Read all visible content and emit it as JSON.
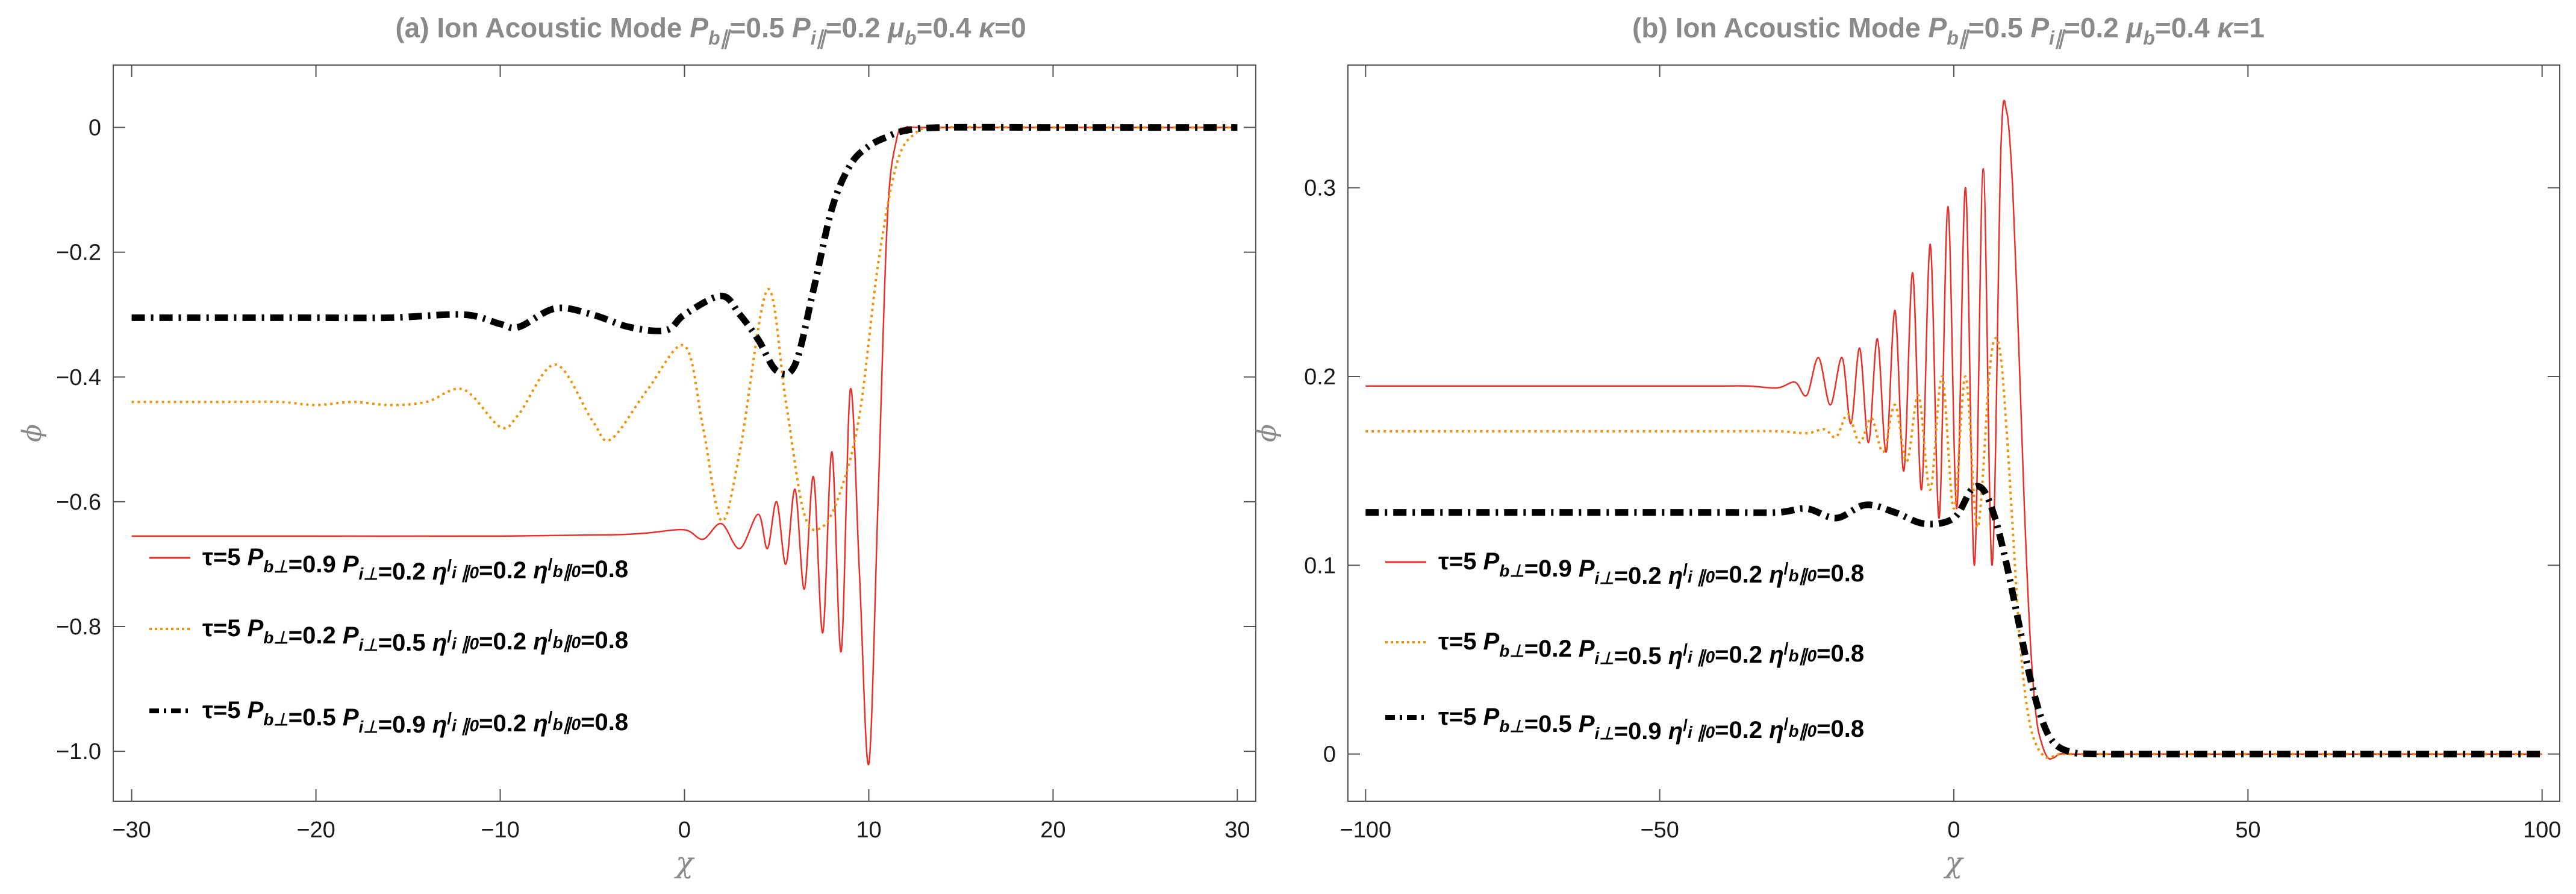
{
  "chart_data": [
    {
      "type": "line",
      "title_prefix": "(a) Ion Acoustic Mode ",
      "title_params": [
        {
          "sym": "P",
          "sub": "b∥",
          "val": "=0.5"
        },
        {
          "sym": "P",
          "sub": "i∥",
          "val": "=0.2"
        },
        {
          "sym": "μ",
          "sub": "b",
          "val": "=0.4"
        },
        {
          "sym": "κ",
          "sub": "",
          "val": "=0"
        }
      ],
      "xlabel": "χ",
      "ylabel": "ϕ",
      "xlim": [
        -31,
        31
      ],
      "ylim": [
        -1.08,
        0.1
      ],
      "xticks": [
        -30,
        -20,
        -10,
        0,
        10,
        20,
        30
      ],
      "xtick_labels": [
        "−30",
        "−20",
        "−10",
        "0",
        "10",
        "20",
        "30"
      ],
      "yticks": [
        0,
        -0.2,
        -0.4,
        -0.6,
        -0.8,
        -1.0
      ],
      "ytick_labels": [
        "0",
        "−0.2",
        "−0.4",
        "−0.6",
        "−0.8",
        "−1.0"
      ],
      "legend_position": "lower-left",
      "series": [
        {
          "name": "τ=5 P_b⊥=0.9 P_i⊥=0.2 η'_i∥0=0.2 η'_b∥0=0.8",
          "label_parts": [
            {
              "t": "τ=5 "
            },
            {
              "t": "P"
            },
            {
              "t": "b⊥",
              "sub": true
            },
            {
              "t": "=0.9 "
            },
            {
              "t": "P"
            },
            {
              "t": "i⊥",
              "sub": true
            },
            {
              "t": "=0.2 "
            },
            {
              "t": "η"
            },
            {
              "t": "/",
              "sup": true
            },
            {
              "t": "i ∥0",
              "sub": true
            },
            {
              "t": "=0.2 "
            },
            {
              "t": "η"
            },
            {
              "t": "/",
              "sup": true
            },
            {
              "t": "b∥0",
              "sub": true
            },
            {
              "t": "=0.8"
            }
          ],
          "color": "#e8302a",
          "style": "solid",
          "x": [
            -30,
            -20,
            -10,
            -4,
            -2,
            0,
            1,
            2,
            3,
            4,
            4.5,
            5,
            5.5,
            6,
            6.5,
            7,
            7.5,
            8,
            8.5,
            9,
            9.5,
            10,
            10.5,
            11,
            11.5,
            12,
            13,
            20,
            30
          ],
          "y": [
            -0.655,
            -0.655,
            -0.655,
            -0.653,
            -0.65,
            -0.645,
            -0.66,
            -0.635,
            -0.675,
            -0.62,
            -0.675,
            -0.6,
            -0.7,
            -0.58,
            -0.74,
            -0.56,
            -0.81,
            -0.52,
            -0.84,
            -0.42,
            -0.72,
            -1.02,
            -0.6,
            -0.15,
            -0.02,
            0.0,
            0.0,
            0.0,
            0.0
          ]
        },
        {
          "name": "τ=5 P_b⊥=0.2 P_i⊥=0.5 η'_i∥0=0.2 η'_b∥0=0.8",
          "label_parts": [
            {
              "t": "τ=5 "
            },
            {
              "t": "P"
            },
            {
              "t": "b⊥",
              "sub": true
            },
            {
              "t": "=0.2 "
            },
            {
              "t": "P"
            },
            {
              "t": "i⊥",
              "sub": true
            },
            {
              "t": "=0.5 "
            },
            {
              "t": "η"
            },
            {
              "t": "/",
              "sup": true
            },
            {
              "t": "i ∥0",
              "sub": true
            },
            {
              "t": "=0.2 "
            },
            {
              "t": "η"
            },
            {
              "t": "/",
              "sup": true
            },
            {
              "t": "b∥0",
              "sub": true
            },
            {
              "t": "=0.8"
            }
          ],
          "color": "#f0920a",
          "style": "dotted",
          "x": [
            -30,
            -25,
            -22,
            -20,
            -18,
            -16,
            -14,
            -12,
            -10,
            -9,
            -7,
            -5,
            -4,
            -2,
            0,
            1,
            2,
            3,
            4.5,
            5.5,
            6.5,
            7.5,
            8.5,
            9.5,
            10.5,
            11.5,
            12.5,
            14,
            20,
            30
          ],
          "y": [
            -0.44,
            -0.44,
            -0.44,
            -0.445,
            -0.44,
            -0.445,
            -0.44,
            -0.42,
            -0.48,
            -0.46,
            -0.38,
            -0.47,
            -0.5,
            -0.42,
            -0.35,
            -0.48,
            -0.63,
            -0.52,
            -0.26,
            -0.44,
            -0.62,
            -0.64,
            -0.58,
            -0.46,
            -0.22,
            -0.06,
            -0.01,
            0.0,
            0.0,
            0.0
          ]
        },
        {
          "name": "τ=5 P_b⊥=0.5 P_i⊥=0.9 η'_i∥0=0.2 η'_b∥0=0.8",
          "label_parts": [
            {
              "t": "τ=5 "
            },
            {
              "t": "P"
            },
            {
              "t": "b⊥",
              "sub": true
            },
            {
              "t": "=0.5 "
            },
            {
              "t": "P"
            },
            {
              "t": "i⊥",
              "sub": true
            },
            {
              "t": "=0.9 "
            },
            {
              "t": "η"
            },
            {
              "t": "/",
              "sup": true
            },
            {
              "t": "i ∥0",
              "sub": true
            },
            {
              "t": "=0.2 "
            },
            {
              "t": "η"
            },
            {
              "t": "/",
              "sup": true
            },
            {
              "t": "b∥0",
              "sub": true
            },
            {
              "t": "=0.8"
            }
          ],
          "color": "#000000",
          "style": "dashdot",
          "x": [
            -30,
            -25,
            -20,
            -16,
            -12,
            -10,
            -9,
            -7,
            -5,
            -3,
            -1,
            0,
            2,
            3,
            4,
            5,
            6,
            7,
            8,
            9,
            10,
            11,
            12,
            14,
            20,
            30
          ],
          "y": [
            -0.305,
            -0.305,
            -0.305,
            -0.305,
            -0.3,
            -0.315,
            -0.32,
            -0.29,
            -0.3,
            -0.32,
            -0.325,
            -0.3,
            -0.27,
            -0.3,
            -0.34,
            -0.39,
            -0.38,
            -0.26,
            -0.13,
            -0.06,
            -0.03,
            -0.015,
            -0.005,
            0.0,
            0.0,
            0.0
          ]
        }
      ]
    },
    {
      "type": "line",
      "title_prefix": "(b) Ion Acoustic Mode ",
      "title_params": [
        {
          "sym": "P",
          "sub": "b∥",
          "val": "=0.5"
        },
        {
          "sym": "P",
          "sub": "i∥",
          "val": "=0.2"
        },
        {
          "sym": "μ",
          "sub": "b",
          "val": "=0.4"
        },
        {
          "sym": "κ",
          "sub": "",
          "val": "=1"
        }
      ],
      "xlabel": "χ",
      "ylabel": "ϕ",
      "xlim": [
        -103,
        103
      ],
      "ylim": [
        -0.025,
        0.365
      ],
      "xticks": [
        -100,
        -50,
        0,
        50,
        100
      ],
      "xtick_labels": [
        "−100",
        "−50",
        "0",
        "50",
        "100"
      ],
      "yticks": [
        0,
        0.1,
        0.2,
        0.3
      ],
      "ytick_labels": [
        "0",
        "0.1",
        "0.2",
        "0.3"
      ],
      "legend_position": "lower-left",
      "series": [
        {
          "name": "τ=5 P_b⊥=0.9 P_i⊥=0.2 η'_i∥0=0.2 η'_b∥0=0.8",
          "label_parts": [
            {
              "t": "τ=5 "
            },
            {
              "t": "P"
            },
            {
              "t": "b⊥",
              "sub": true
            },
            {
              "t": "=0.9 "
            },
            {
              "t": "P"
            },
            {
              "t": "i⊥",
              "sub": true
            },
            {
              "t": "=0.2 "
            },
            {
              "t": "η"
            },
            {
              "t": "/",
              "sup": true
            },
            {
              "t": "i ∥0",
              "sub": true
            },
            {
              "t": "=0.2 "
            },
            {
              "t": "η"
            },
            {
              "t": "/",
              "sup": true
            },
            {
              "t": "b∥0",
              "sub": true
            },
            {
              "t": "=0.8"
            }
          ],
          "color": "#e8302a",
          "style": "solid",
          "x": [
            -100,
            -60,
            -40,
            -35,
            -30,
            -27,
            -25,
            -23,
            -21,
            -19,
            -17.5,
            -16,
            -14.5,
            -13,
            -11.5,
            -10,
            -8.5,
            -7,
            -5.5,
            -4,
            -2.5,
            -1,
            0.5,
            2,
            3.5,
            5,
            6.5,
            8,
            9,
            10,
            11,
            12,
            13,
            14,
            15,
            16,
            17,
            18,
            20,
            25,
            40,
            100
          ],
          "y": [
            0.195,
            0.195,
            0.195,
            0.195,
            0.194,
            0.197,
            0.19,
            0.21,
            0.185,
            0.21,
            0.175,
            0.215,
            0.165,
            0.22,
            0.16,
            0.235,
            0.15,
            0.255,
            0.14,
            0.27,
            0.125,
            0.29,
            0.13,
            0.3,
            0.1,
            0.31,
            0.1,
            0.32,
            0.34,
            0.3,
            0.22,
            0.13,
            0.06,
            0.02,
            0.005,
            -0.002,
            -0.002,
            0.0,
            0.0,
            0.0,
            0.0,
            0.0
          ]
        },
        {
          "name": "τ=5 P_b⊥=0.2 P_i⊥=0.5 η'_i∥0=0.2 η'_b∥0=0.8",
          "label_parts": [
            {
              "t": "τ=5 "
            },
            {
              "t": "P"
            },
            {
              "t": "b⊥",
              "sub": true
            },
            {
              "t": "=0.2 "
            },
            {
              "t": "P"
            },
            {
              "t": "i⊥",
              "sub": true
            },
            {
              "t": "=0.5 "
            },
            {
              "t": "η"
            },
            {
              "t": "/",
              "sup": true
            },
            {
              "t": "i ∥0",
              "sub": true
            },
            {
              "t": "=0.2 "
            },
            {
              "t": "η"
            },
            {
              "t": "/",
              "sup": true
            },
            {
              "t": "b∥0",
              "sub": true
            },
            {
              "t": "=0.8"
            }
          ],
          "color": "#f0920a",
          "style": "dotted",
          "x": [
            -100,
            -60,
            -40,
            -30,
            -25,
            -22,
            -20,
            -18,
            -16,
            -14,
            -12,
            -10,
            -8,
            -6,
            -4,
            -2,
            0,
            2,
            4,
            6,
            7,
            8,
            9,
            10,
            11,
            12,
            13,
            14,
            15,
            16,
            18,
            20,
            30,
            100
          ],
          "y": [
            0.171,
            0.171,
            0.171,
            0.171,
            0.17,
            0.172,
            0.168,
            0.18,
            0.165,
            0.178,
            0.16,
            0.185,
            0.155,
            0.19,
            0.14,
            0.2,
            0.13,
            0.2,
            0.12,
            0.2,
            0.22,
            0.21,
            0.17,
            0.12,
            0.07,
            0.035,
            0.015,
            0.005,
            0.0,
            -0.002,
            0.0,
            0.0,
            0.0,
            0.0
          ]
        },
        {
          "name": "τ=5 P_b⊥=0.5 P_i⊥=0.9 η'_i∥0=0.2 η'_b∥0=0.8",
          "label_parts": [
            {
              "t": "τ=5 "
            },
            {
              "t": "P"
            },
            {
              "t": "b⊥",
              "sub": true
            },
            {
              "t": "=0.5 "
            },
            {
              "t": "P"
            },
            {
              "t": "i⊥",
              "sub": true
            },
            {
              "t": "=0.9 "
            },
            {
              "t": "η"
            },
            {
              "t": "/",
              "sup": true
            },
            {
              "t": "i ∥0",
              "sub": true
            },
            {
              "t": "=0.2 "
            },
            {
              "t": "η"
            },
            {
              "t": "/",
              "sup": true
            },
            {
              "t": "b∥0",
              "sub": true
            },
            {
              "t": "=0.8"
            }
          ],
          "color": "#000000",
          "style": "dashdot",
          "x": [
            -100,
            -60,
            -40,
            -30,
            -25,
            -20,
            -15,
            -10,
            -5,
            0,
            3,
            5,
            7,
            9,
            11,
            13,
            15,
            17,
            20,
            25,
            40,
            100
          ],
          "y": [
            0.128,
            0.128,
            0.128,
            0.128,
            0.13,
            0.125,
            0.132,
            0.128,
            0.122,
            0.125,
            0.14,
            0.14,
            0.125,
            0.1,
            0.07,
            0.04,
            0.018,
            0.006,
            0.001,
            0.0,
            0.0,
            0.0
          ]
        }
      ]
    }
  ]
}
